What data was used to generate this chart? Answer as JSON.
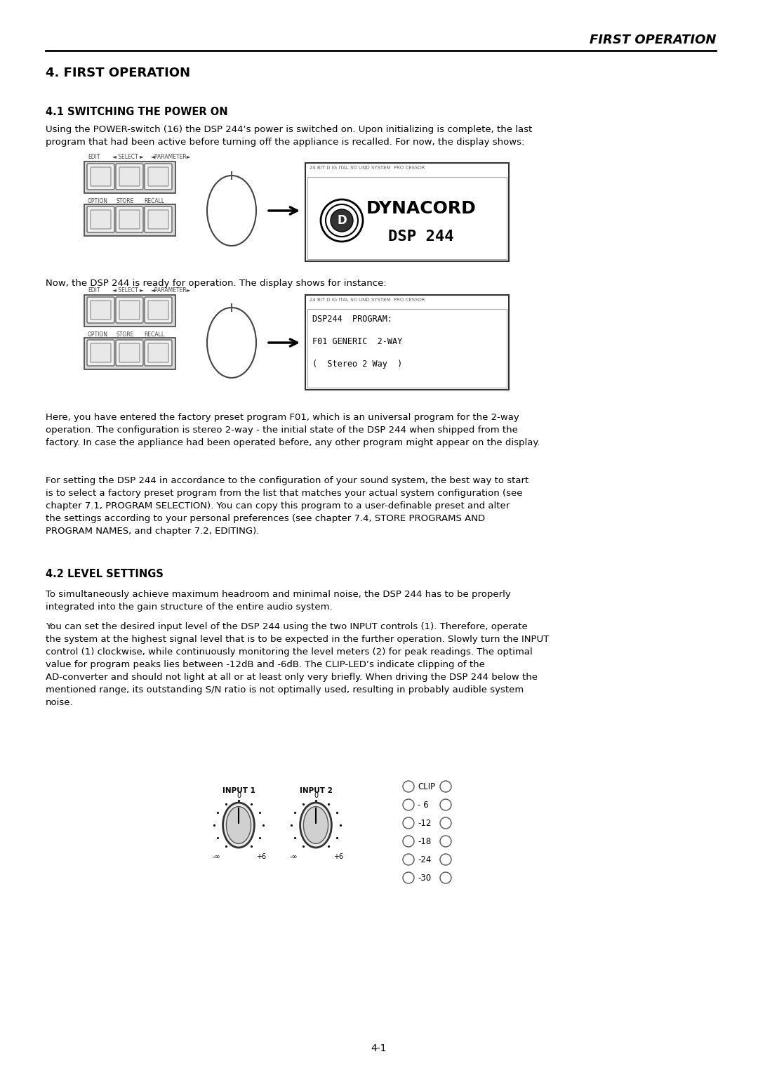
{
  "page_title": "FIRST OPERATION",
  "section_title": "4. FIRST OPERATION",
  "sub1_title": "4.1 SWITCHING THE POWER ON",
  "sub1_para1": "Using the POWER-switch (16) the DSP 244’s power is switched on. Upon initializing is complete, the last\nprogram that had been active before turning off the appliance is recalled. For now, the display shows:",
  "display1_top": "24 BIT D IG ITAL SO UND SYSTEM  PRO CESSOR",
  "display1_logo": "DYNACORD",
  "display1_line2": "DSP 244",
  "sub1_para2": "Now, the DSP 244 is ready for operation. The display shows for instance:",
  "display2_top": "24 BIT D IG ITAL SO UND SYSTEM  PRO CESSOR",
  "display2_line1": "DSP244  PROGRAM:",
  "display2_line2": "F01 GENERIC  2-WAY",
  "display2_line3": "(  Stereo 2 Way  )",
  "para_factory": "Here, you have entered the factory preset program F01, which is an universal program for the 2-way\noperation. The configuration is stereo 2-way - the initial state of the DSP 244 when shipped from the\nfactory. In case the appliance had been operated before, any other program might appear on the display.",
  "para_setting": "For setting the DSP 244 in accordance to the configuration of your sound system, the best way to start\nis to select a factory preset program from the list that matches your actual system configuration (see\nchapter 7.1, PROGRAM SELECTION). You can copy this program to a user-definable preset and alter\nthe settings according to your personal preferences (see chapter 7.4, STORE PROGRAMS AND\nPROGRAM NAMES, and chapter 7.2, EDITING).",
  "sub2_title": "4.2 LEVEL SETTINGS",
  "sub2_para1": "To simultaneously achieve maximum headroom and minimal noise, the DSP 244 has to be properly\nintegrated into the gain structure of the entire audio system.",
  "sub2_para2": "You can set the desired input level of the DSP 244 using the two INPUT controls (1). Therefore, operate\nthe system at the highest signal level that is to be expected in the further operation. Slowly turn the INPUT\ncontrol (1) clockwise, while continuously monitoring the level meters (2) for peak readings. The optimal\nvalue for program peaks lies between -12dB and -6dB. The CLIP-LED’s indicate clipping of the\nAD-converter and should not light at all or at least only very briefly. When driving the DSP 244 below the\nmentioned range, its outstanding S/N ratio is not optimally used, resulting in probably audible system\nnoise.",
  "page_number": "4-1",
  "bg_color": "#ffffff",
  "text_color": "#000000"
}
